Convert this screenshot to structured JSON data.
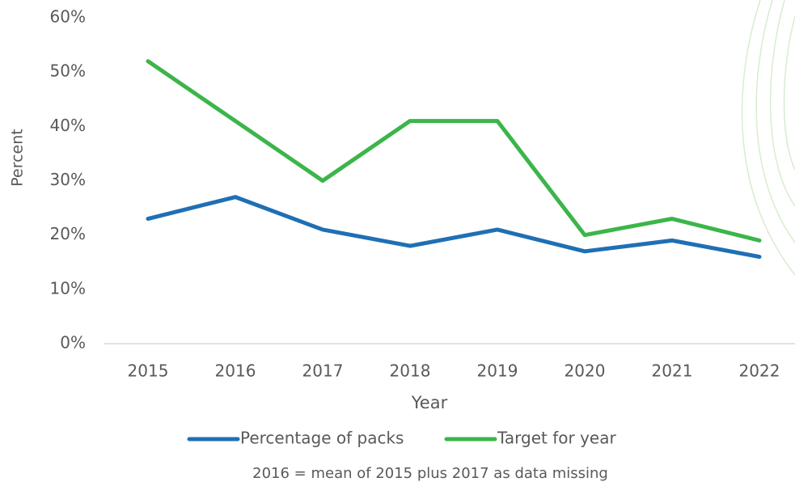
{
  "chart_data": {
    "type": "line",
    "x_label": "Year",
    "y_label": "Percent",
    "note": "2016 = mean of 2015 plus 2017 as data missing",
    "categories": [
      "2015",
      "2016",
      "2017",
      "2018",
      "2019",
      "2020",
      "2021",
      "2022"
    ],
    "series": [
      {
        "name": "Percentage of packs",
        "color": "#1f6fb5",
        "values": [
          23,
          27,
          21,
          18,
          21,
          17,
          19,
          16
        ]
      },
      {
        "name": "Target for year",
        "color": "#3cb54a",
        "values": [
          52,
          41,
          30,
          41,
          41,
          20,
          23,
          19
        ]
      }
    ],
    "ylim": [
      0,
      60
    ],
    "yticks": [
      {
        "value": 0,
        "label": "0%"
      },
      {
        "value": 10,
        "label": "10%"
      },
      {
        "value": 20,
        "label": "20%"
      },
      {
        "value": 30,
        "label": "30%"
      },
      {
        "value": 40,
        "label": "40%"
      },
      {
        "value": 50,
        "label": "50%"
      },
      {
        "value": 60,
        "label": "60%"
      }
    ],
    "grid": false
  }
}
